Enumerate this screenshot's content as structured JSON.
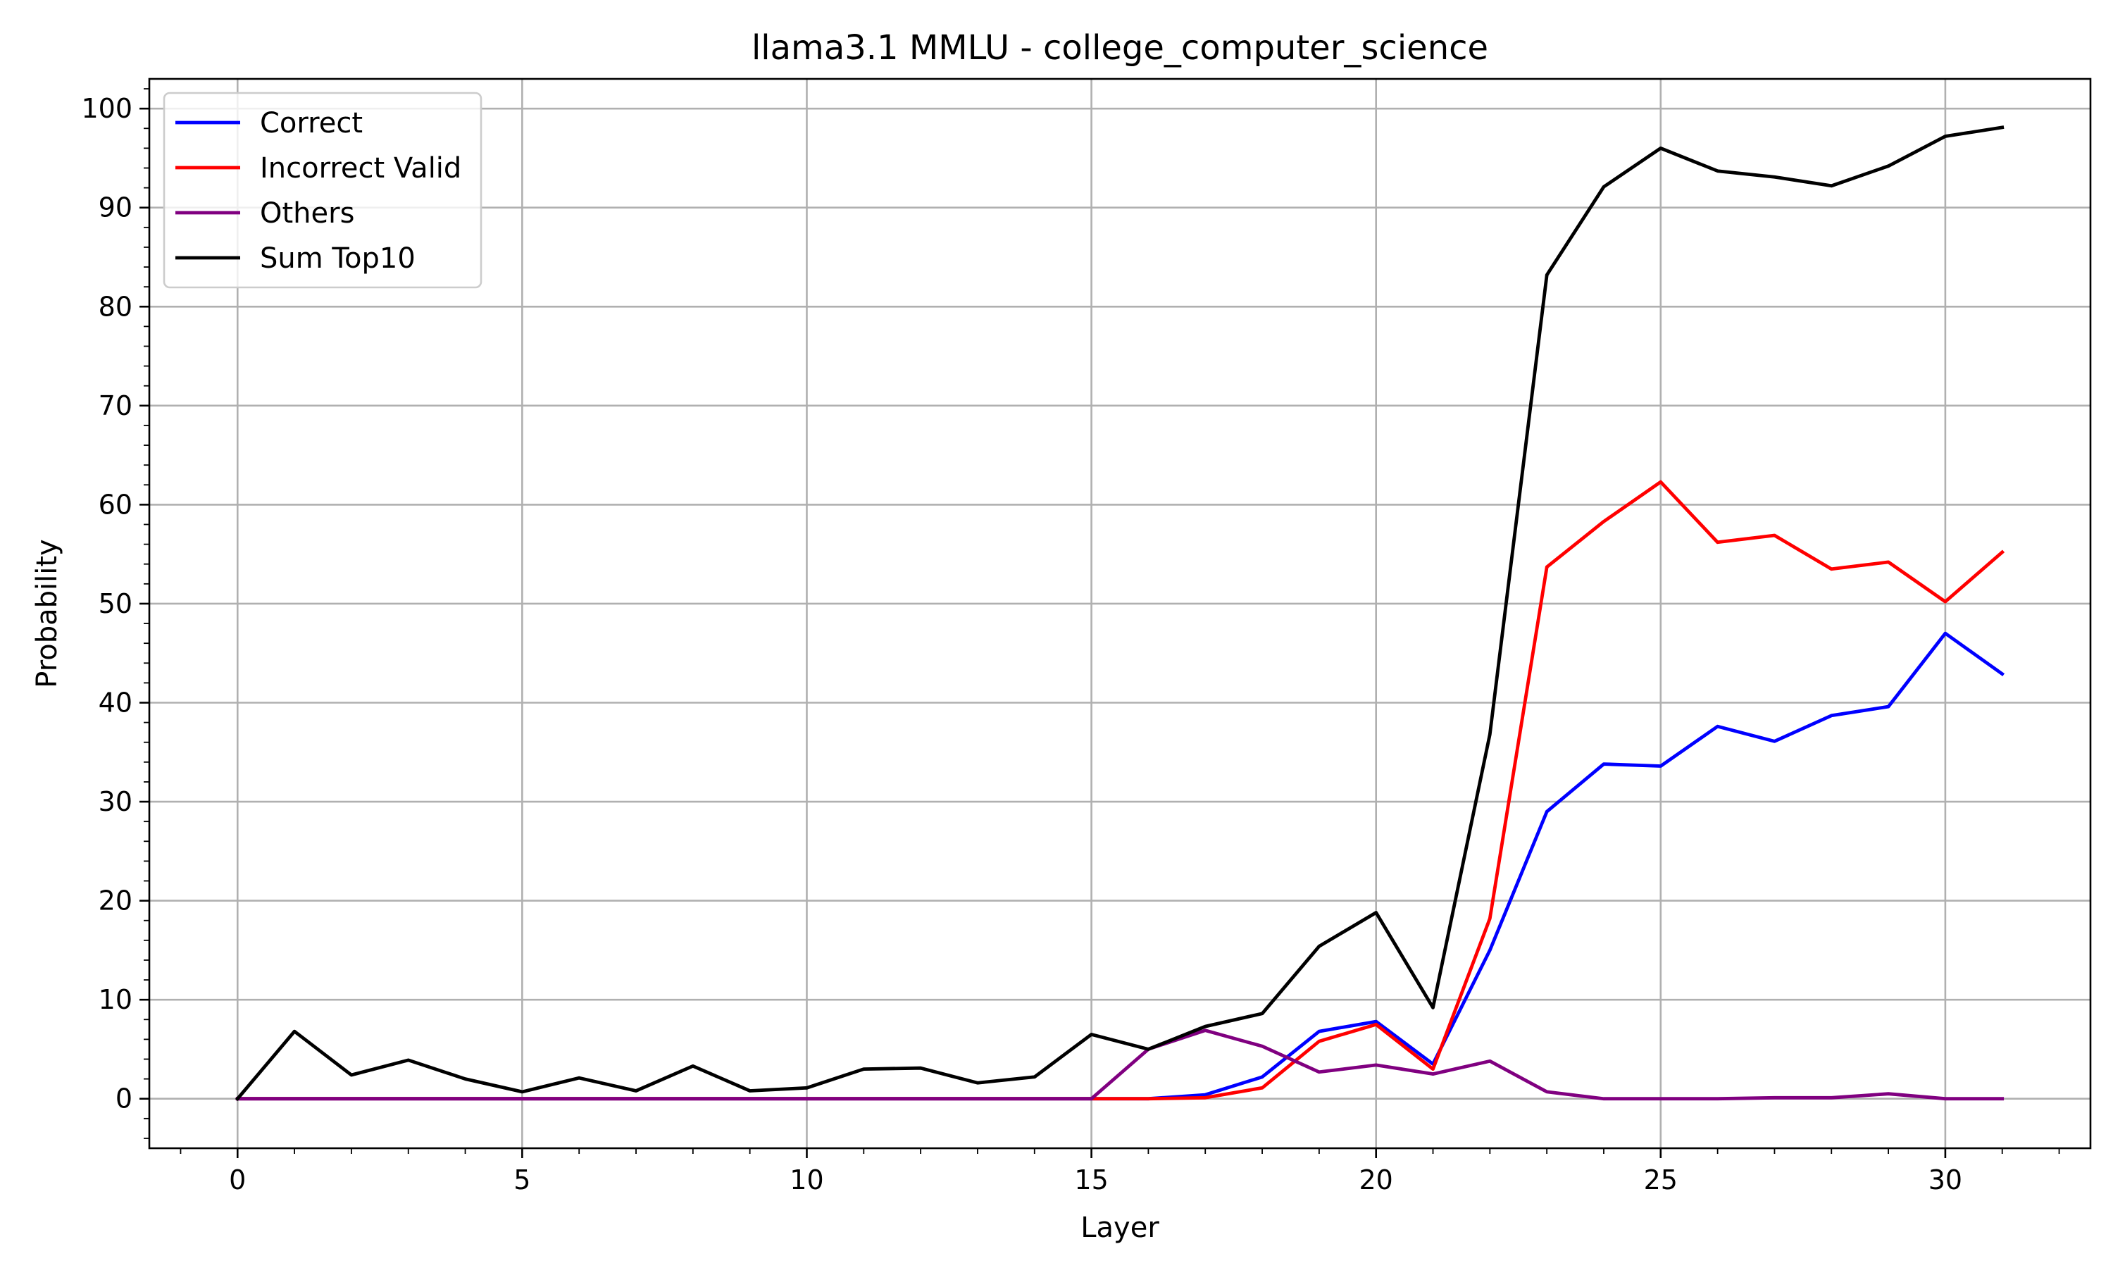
{
  "chart_data": {
    "type": "line",
    "title": "llama3.1 MMLU - college_computer_science",
    "xlabel": "Layer",
    "ylabel": "Probability",
    "xlim": [
      -1.55,
      32.55
    ],
    "ylim": [
      -5,
      103
    ],
    "grid": true,
    "legend_position": "top-left",
    "x_ticks": [
      0,
      5,
      10,
      15,
      20,
      25,
      30
    ],
    "y_ticks": [
      0,
      10,
      20,
      30,
      40,
      50,
      60,
      70,
      80,
      90,
      100
    ],
    "x": [
      0,
      1,
      2,
      3,
      4,
      5,
      6,
      7,
      8,
      9,
      10,
      11,
      12,
      13,
      14,
      15,
      16,
      17,
      18,
      19,
      20,
      21,
      22,
      23,
      24,
      25,
      26,
      27,
      28,
      29,
      30,
      31
    ],
    "series": [
      {
        "name": "Correct",
        "color": "#0000ff",
        "values": [
          0,
          0,
          0,
          0,
          0,
          0,
          0,
          0,
          0,
          0,
          0,
          0,
          0,
          0,
          0,
          0,
          0,
          0.4,
          2.2,
          6.8,
          7.8,
          3.5,
          15,
          29,
          33.8,
          33.6,
          37.6,
          36.1,
          38.7,
          39.6,
          47,
          42.9
        ]
      },
      {
        "name": "Incorrect Valid",
        "color": "#ff0000",
        "values": [
          0,
          0,
          0,
          0,
          0,
          0,
          0,
          0,
          0,
          0,
          0,
          0,
          0,
          0,
          0,
          0,
          0,
          0.1,
          1.1,
          5.8,
          7.5,
          3.0,
          18.2,
          53.7,
          58.3,
          62.3,
          56.2,
          56.9,
          53.5,
          54.2,
          50.2,
          55.2
        ]
      },
      {
        "name": "Others",
        "color": "#800080",
        "values": [
          0,
          0,
          0,
          0,
          0,
          0,
          0,
          0,
          0,
          0,
          0,
          0,
          0,
          0,
          0,
          0,
          5.0,
          6.9,
          5.3,
          2.7,
          3.4,
          2.5,
          3.8,
          0.7,
          0,
          0,
          0,
          0.1,
          0.1,
          0.5,
          0,
          0
        ]
      },
      {
        "name": "Sum Top10",
        "color": "#000000",
        "values": [
          0,
          6.8,
          2.4,
          3.9,
          2.0,
          0.7,
          2.1,
          0.8,
          3.3,
          0.8,
          1.1,
          3.0,
          3.1,
          1.6,
          2.2,
          6.5,
          5.0,
          7.3,
          8.6,
          15.4,
          18.8,
          9.2,
          36.8,
          83.2,
          92.1,
          96.0,
          93.7,
          93.1,
          92.2,
          94.2,
          97.2,
          98.1
        ]
      }
    ]
  }
}
